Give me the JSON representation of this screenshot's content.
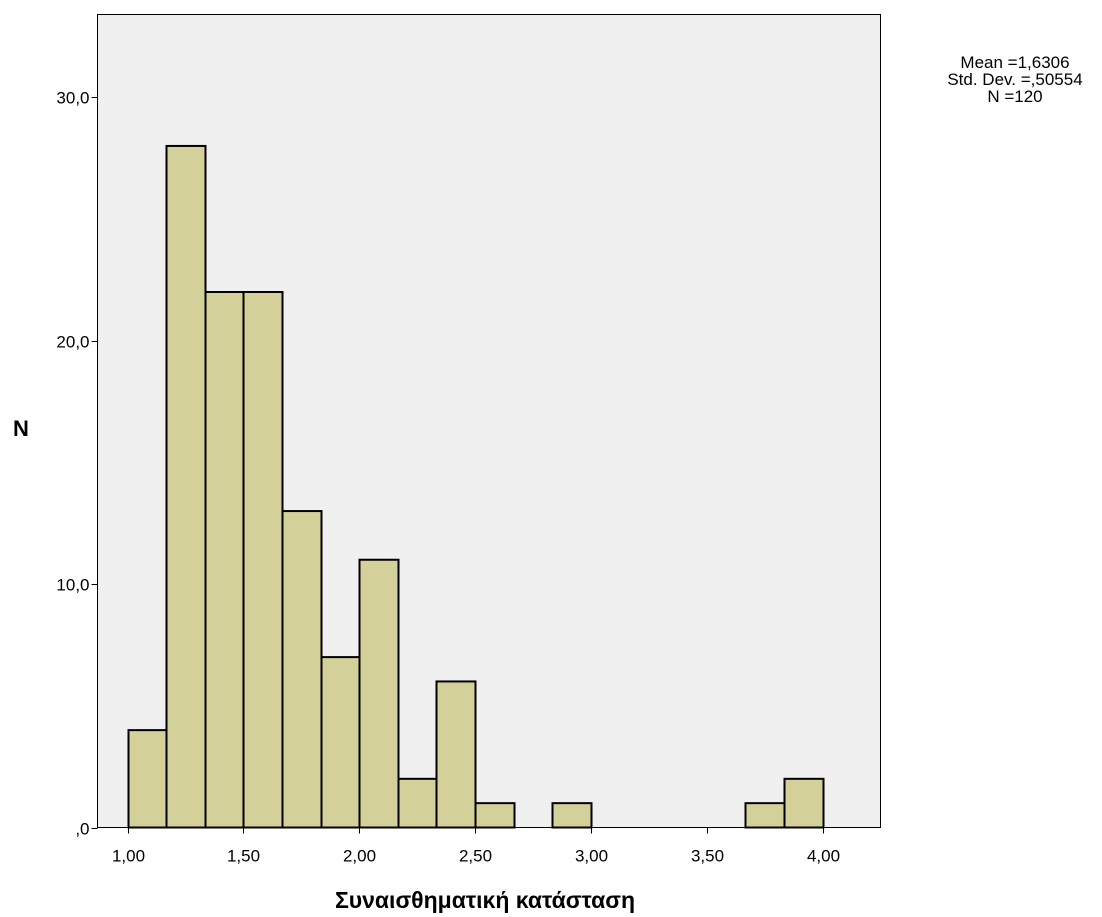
{
  "chart_data": {
    "type": "bar",
    "subtype": "histogram",
    "xlabel": "Συναισθηματική κατάσταση",
    "ylabel": "N",
    "xlim": [
      0.87,
      4.25
    ],
    "ylim": [
      0,
      33.4
    ],
    "x_ticks": [
      1.0,
      1.5,
      2.0,
      2.5,
      3.0,
      3.5,
      4.0
    ],
    "x_tick_labels": [
      "1,00",
      "1,50",
      "2,00",
      "2,50",
      "3,00",
      "3,50",
      "4,00"
    ],
    "y_ticks": [
      0,
      10,
      20,
      30
    ],
    "y_tick_labels": [
      ",0",
      "10,0",
      "20,0",
      "30,0"
    ],
    "bin_width": 0.1667,
    "bins": [
      {
        "start": 1.0,
        "end": 1.1667,
        "count": 4
      },
      {
        "start": 1.1667,
        "end": 1.3333,
        "count": 28
      },
      {
        "start": 1.3333,
        "end": 1.5,
        "count": 22
      },
      {
        "start": 1.5,
        "end": 1.6667,
        "count": 22
      },
      {
        "start": 1.6667,
        "end": 1.8333,
        "count": 13
      },
      {
        "start": 1.8333,
        "end": 2.0,
        "count": 7
      },
      {
        "start": 2.0,
        "end": 2.1667,
        "count": 11
      },
      {
        "start": 2.1667,
        "end": 2.3333,
        "count": 2
      },
      {
        "start": 2.3333,
        "end": 2.5,
        "count": 6
      },
      {
        "start": 2.5,
        "end": 2.6667,
        "count": 1
      },
      {
        "start": 2.6667,
        "end": 2.8333,
        "count": 0
      },
      {
        "start": 2.8333,
        "end": 3.0,
        "count": 1
      },
      {
        "start": 3.0,
        "end": 3.1667,
        "count": 0
      },
      {
        "start": 3.1667,
        "end": 3.3333,
        "count": 0
      },
      {
        "start": 3.3333,
        "end": 3.5,
        "count": 0
      },
      {
        "start": 3.5,
        "end": 3.6667,
        "count": 0
      },
      {
        "start": 3.6667,
        "end": 3.8333,
        "count": 1
      },
      {
        "start": 3.8333,
        "end": 4.0,
        "count": 2
      }
    ],
    "grid": false,
    "legend": "none",
    "stats": {
      "mean": "Mean =1,6306",
      "std_dev": "Std. Dev. =,50554",
      "n": "N =120"
    },
    "colors": {
      "bar_fill": "#d4d09a",
      "bar_stroke": "#000000",
      "plot_background": "#f0f0f0",
      "page_background": "#ffffff"
    }
  }
}
